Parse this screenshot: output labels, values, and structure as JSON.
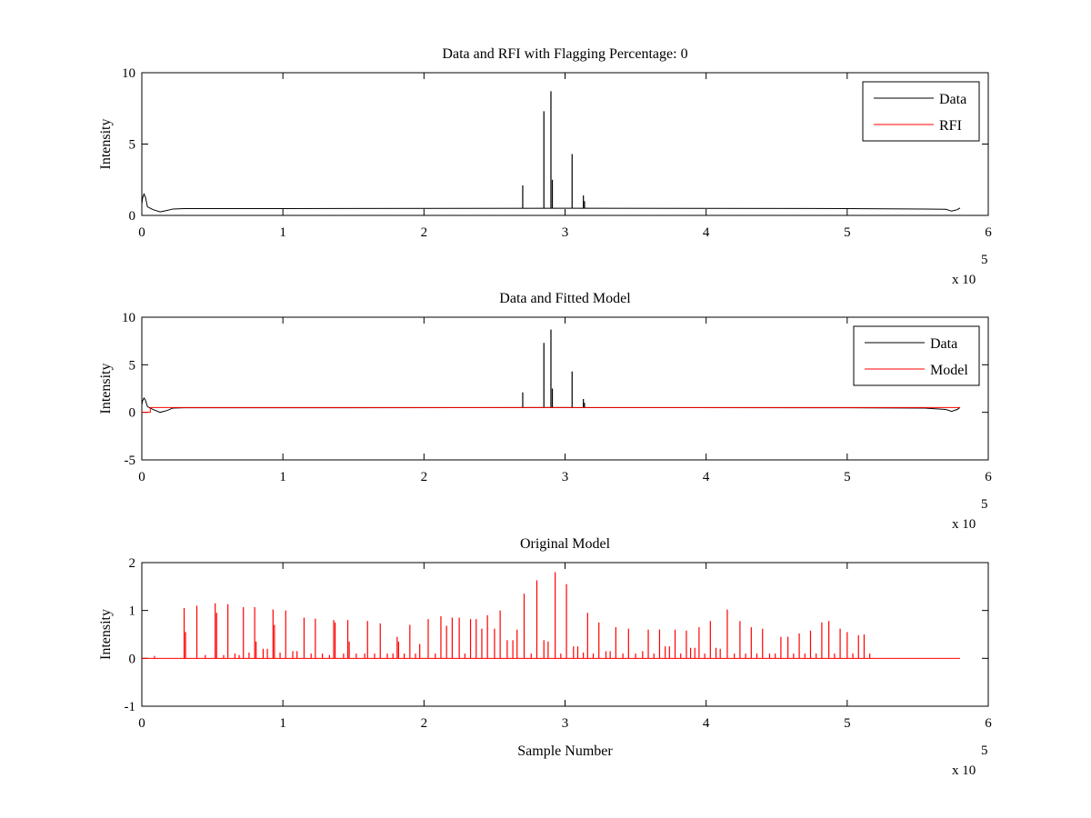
{
  "figure": {
    "background": "#ffffff",
    "colors": {
      "data": "#000000",
      "rfi": "#ff0000",
      "model": "#ff0000"
    }
  },
  "chart_data": [
    {
      "type": "line",
      "title": "Data and RFI with Flagging Percentage: 0",
      "xlabel": "",
      "ylabel": "Intensity",
      "xlim": [
        0,
        600000
      ],
      "ylim": [
        0,
        10
      ],
      "xticks": [
        0,
        100000,
        200000,
        300000,
        400000,
        500000,
        600000
      ],
      "xtick_labels": [
        "0",
        "1",
        "2",
        "3",
        "4",
        "5",
        "6"
      ],
      "yticks": [
        0,
        5,
        10
      ],
      "ytick_labels": [
        "0",
        "5",
        "10"
      ],
      "x_exponent": {
        "base": "x 10",
        "power": "5"
      },
      "grid": false,
      "legend": {
        "position": "top-right",
        "entries": [
          {
            "label": "Data",
            "color": "#000000"
          },
          {
            "label": "RFI",
            "color": "#ff0000"
          }
        ]
      },
      "series": [
        {
          "name": "Data",
          "color": "#000000",
          "baseline": [
            [
              0,
              0.8
            ],
            [
              500,
              1.2
            ],
            [
              1500,
              1.5
            ],
            [
              2500,
              1.3
            ],
            [
              4000,
              0.6
            ],
            [
              8000,
              0.4
            ],
            [
              13000,
              0.25
            ],
            [
              18000,
              0.35
            ],
            [
              22000,
              0.45
            ],
            [
              30000,
              0.48
            ],
            [
              100000,
              0.48
            ],
            [
              300000,
              0.5
            ],
            [
              500000,
              0.48
            ],
            [
              555000,
              0.45
            ],
            [
              570000,
              0.43
            ],
            [
              574000,
              0.3
            ],
            [
              578000,
              0.4
            ],
            [
              580000,
              0.52
            ]
          ],
          "spikes": [
            [
              270000,
              2.1
            ],
            [
              285000,
              7.3
            ],
            [
              290000,
              8.7
            ],
            [
              291000,
              2.5
            ],
            [
              305000,
              4.3
            ],
            [
              313000,
              1.4
            ],
            [
              313800,
              1.0
            ]
          ]
        }
      ]
    },
    {
      "type": "line",
      "title": "Data and Fitted Model",
      "xlabel": "",
      "ylabel": "Intensity",
      "xlim": [
        0,
        600000
      ],
      "ylim": [
        -5,
        10
      ],
      "xticks": [
        0,
        100000,
        200000,
        300000,
        400000,
        500000,
        600000
      ],
      "xtick_labels": [
        "0",
        "1",
        "2",
        "3",
        "4",
        "5",
        "6"
      ],
      "yticks": [
        -5,
        0,
        5,
        10
      ],
      "ytick_labels": [
        "-5",
        "0",
        "5",
        "10"
      ],
      "x_exponent": {
        "base": "x 10",
        "power": "5"
      },
      "grid": false,
      "legend": {
        "position": "top-right",
        "entries": [
          {
            "label": "Data",
            "color": "#000000"
          },
          {
            "label": "Model",
            "color": "#ff0000"
          }
        ]
      },
      "series": [
        {
          "name": "Data",
          "color": "#000000",
          "baseline": [
            [
              0,
              0.8
            ],
            [
              500,
              1.2
            ],
            [
              1500,
              1.5
            ],
            [
              2500,
              1.3
            ],
            [
              4000,
              0.6
            ],
            [
              8000,
              0.3
            ],
            [
              13000,
              0.0
            ],
            [
              18000,
              0.2
            ],
            [
              22000,
              0.45
            ],
            [
              30000,
              0.48
            ],
            [
              100000,
              0.48
            ],
            [
              300000,
              0.5
            ],
            [
              500000,
              0.48
            ],
            [
              555000,
              0.45
            ],
            [
              570000,
              0.3
            ],
            [
              574000,
              0.1
            ],
            [
              578000,
              0.3
            ],
            [
              580000,
              0.52
            ]
          ],
          "spikes": [
            [
              270000,
              2.1
            ],
            [
              285000,
              7.3
            ],
            [
              290000,
              8.7
            ],
            [
              291000,
              2.5
            ],
            [
              305000,
              4.3
            ],
            [
              313000,
              1.4
            ],
            [
              313800,
              1.0
            ]
          ]
        },
        {
          "name": "Model",
          "color": "#ff0000",
          "baseline": [
            [
              0,
              0.0
            ],
            [
              6000,
              0.0
            ],
            [
              6000,
              0.5
            ],
            [
              580000,
              0.5
            ]
          ],
          "spikes": []
        }
      ]
    },
    {
      "type": "line",
      "title": "Original Model",
      "xlabel": "Sample Number",
      "ylabel": "Intensity",
      "xlim": [
        0,
        600000
      ],
      "ylim": [
        -1,
        2
      ],
      "xticks": [
        0,
        100000,
        200000,
        300000,
        400000,
        500000,
        600000
      ],
      "xtick_labels": [
        "0",
        "1",
        "2",
        "3",
        "4",
        "5",
        "6"
      ],
      "yticks": [
        -1,
        0,
        1,
        2
      ],
      "ytick_labels": [
        "-1",
        "0",
        "1",
        "2"
      ],
      "x_exponent": {
        "base": "x 10",
        "power": "5"
      },
      "grid": false,
      "legend": null,
      "series": [
        {
          "name": "Model",
          "color": "#ff0000",
          "baseline": [
            [
              0,
              0.0
            ],
            [
              580000,
              0.0
            ]
          ],
          "spikes": [
            [
              9000,
              0.05
            ],
            [
              30000,
              1.05
            ],
            [
              31000,
              0.55
            ],
            [
              39000,
              1.1
            ],
            [
              45000,
              0.07
            ],
            [
              52000,
              1.15
            ],
            [
              53000,
              0.95
            ],
            [
              58000,
              0.07
            ],
            [
              61000,
              1.13
            ],
            [
              66000,
              0.1
            ],
            [
              69000,
              0.07
            ],
            [
              72000,
              1.07
            ],
            [
              76000,
              0.12
            ],
            [
              80000,
              1.07
            ],
            [
              81000,
              0.35
            ],
            [
              86000,
              0.2
            ],
            [
              89000,
              0.2
            ],
            [
              93000,
              1.02
            ],
            [
              94000,
              0.7
            ],
            [
              98000,
              0.12
            ],
            [
              102000,
              1.0
            ],
            [
              107000,
              0.15
            ],
            [
              110000,
              0.15
            ],
            [
              115000,
              0.85
            ],
            [
              120000,
              0.1
            ],
            [
              123000,
              0.83
            ],
            [
              128000,
              0.1
            ],
            [
              133000,
              0.07
            ],
            [
              136000,
              0.8
            ],
            [
              137000,
              0.75
            ],
            [
              143000,
              0.1
            ],
            [
              146000,
              0.8
            ],
            [
              147000,
              0.35
            ],
            [
              152000,
              0.1
            ],
            [
              158000,
              0.1
            ],
            [
              160000,
              0.78
            ],
            [
              165000,
              0.1
            ],
            [
              169000,
              0.73
            ],
            [
              174000,
              0.1
            ],
            [
              178000,
              0.1
            ],
            [
              181000,
              0.45
            ],
            [
              182000,
              0.35
            ],
            [
              186000,
              0.1
            ],
            [
              190000,
              0.7
            ],
            [
              194000,
              0.1
            ],
            [
              197000,
              0.3
            ],
            [
              203000,
              0.82
            ],
            [
              208000,
              0.1
            ],
            [
              212000,
              0.88
            ],
            [
              216000,
              0.68
            ],
            [
              220000,
              0.85
            ],
            [
              225000,
              0.85
            ],
            [
              229000,
              0.1
            ],
            [
              233000,
              0.82
            ],
            [
              237000,
              0.82
            ],
            [
              241000,
              0.62
            ],
            [
              245000,
              0.9
            ],
            [
              250000,
              0.62
            ],
            [
              254000,
              1.0
            ],
            [
              259000,
              0.38
            ],
            [
              263000,
              0.38
            ],
            [
              266000,
              0.6
            ],
            [
              271000,
              1.35
            ],
            [
              276000,
              0.1
            ],
            [
              280000,
              1.63
            ],
            [
              285000,
              0.38
            ],
            [
              288000,
              0.35
            ],
            [
              293000,
              1.8
            ],
            [
              297000,
              0.1
            ],
            [
              301000,
              1.55
            ],
            [
              306000,
              0.25
            ],
            [
              309000,
              0.25
            ],
            [
              313000,
              0.12
            ],
            [
              316000,
              0.95
            ],
            [
              320000,
              0.1
            ],
            [
              324000,
              0.75
            ],
            [
              329000,
              0.15
            ],
            [
              332000,
              0.15
            ],
            [
              336000,
              0.65
            ],
            [
              341000,
              0.1
            ],
            [
              345000,
              0.62
            ],
            [
              350000,
              0.1
            ],
            [
              355000,
              0.15
            ],
            [
              359000,
              0.6
            ],
            [
              363000,
              0.1
            ],
            [
              367000,
              0.6
            ],
            [
              371000,
              0.25
            ],
            [
              374000,
              0.25
            ],
            [
              378000,
              0.6
            ],
            [
              382000,
              0.1
            ],
            [
              386000,
              0.58
            ],
            [
              389000,
              0.22
            ],
            [
              392000,
              0.22
            ],
            [
              395000,
              0.65
            ],
            [
              399000,
              0.1
            ],
            [
              403000,
              0.78
            ],
            [
              407000,
              0.22
            ],
            [
              410000,
              0.2
            ],
            [
              415000,
              1.02
            ],
            [
              420000,
              0.1
            ],
            [
              424000,
              0.78
            ],
            [
              428000,
              0.1
            ],
            [
              432000,
              0.65
            ],
            [
              436000,
              0.1
            ],
            [
              440000,
              0.62
            ],
            [
              445000,
              0.1
            ],
            [
              449000,
              0.1
            ],
            [
              453000,
              0.45
            ],
            [
              458000,
              0.45
            ],
            [
              462000,
              0.1
            ],
            [
              466000,
              0.52
            ],
            [
              470000,
              0.1
            ],
            [
              474000,
              0.58
            ],
            [
              478000,
              0.1
            ],
            [
              482000,
              0.75
            ],
            [
              487000,
              0.78
            ],
            [
              491000,
              0.1
            ],
            [
              495000,
              0.62
            ],
            [
              500000,
              0.55
            ],
            [
              504000,
              0.1
            ],
            [
              508000,
              0.48
            ],
            [
              512000,
              0.5
            ],
            [
              516000,
              0.1
            ]
          ]
        }
      ]
    }
  ]
}
